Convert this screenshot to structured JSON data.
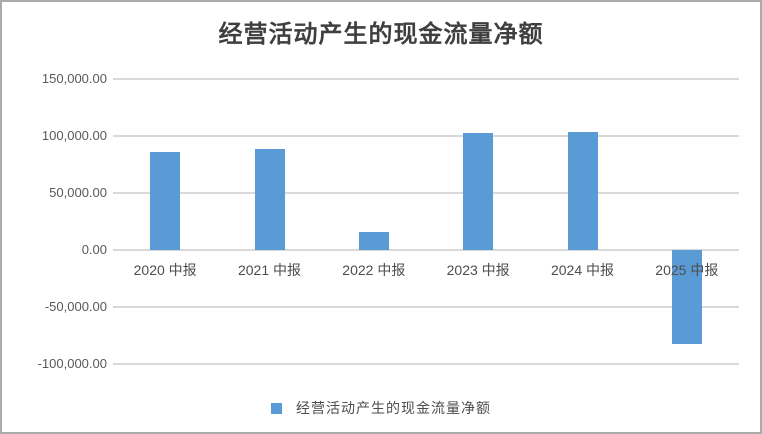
{
  "window": {
    "background": "#ffffff",
    "border_color": "#ababab"
  },
  "chart_data": {
    "type": "bar",
    "title": "经营活动产生的现金流量净额",
    "categories": [
      "2020 中报",
      "2021 中报",
      "2022 中报",
      "2023 中报",
      "2024 中报",
      "2025 中报"
    ],
    "series": [
      {
        "name": "经营活动产生的现金流量净额",
        "values": [
          86000,
          88200,
          15400,
          102800,
          103700,
          -82100
        ]
      }
    ],
    "ylabel": "",
    "xlabel": "",
    "ylim": [
      -100000,
      150000
    ],
    "y_tick_interval": 50000,
    "y_ticks": [
      {
        "value": 150000,
        "label": "150,000.00"
      },
      {
        "value": 100000,
        "label": "100,000.00"
      },
      {
        "value": 50000,
        "label": "50,000.00"
      },
      {
        "value": 0,
        "label": "0.00"
      },
      {
        "value": -50000,
        "label": "-50,000.00"
      },
      {
        "value": -100000,
        "label": "-100,000.00"
      }
    ],
    "grid": true,
    "legend_position": "bottom",
    "bar_color": "#5B9BD5",
    "gridline_color": "#D9D9D9",
    "tick_label_color": "#595959",
    "title_color": "#3f3f3f"
  },
  "legend": {
    "label": "经营活动产生的现金流量净额",
    "swatch_color": "#5B9BD5"
  }
}
